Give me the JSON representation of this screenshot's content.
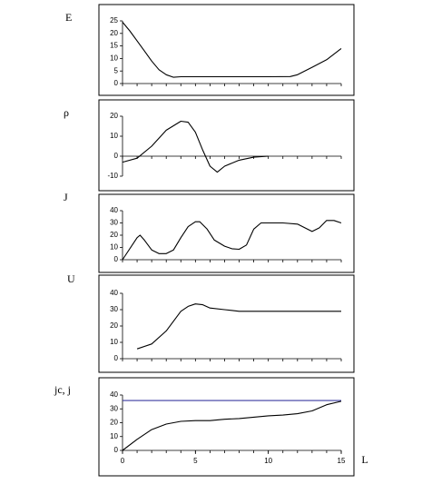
{
  "chart_data": [
    {
      "type": "line",
      "title": "E",
      "color": "#000000",
      "xlim": [
        0,
        15
      ],
      "ylim": [
        0,
        25
      ],
      "yticks": [
        0,
        5,
        10,
        15,
        20,
        25
      ],
      "x": [
        0,
        0.5,
        1,
        1.5,
        2,
        2.5,
        3,
        3.5,
        4,
        6,
        8,
        10,
        11.5,
        12,
        13,
        14,
        15
      ],
      "values": [
        24.5,
        21,
        17,
        13,
        9,
        5.5,
        3.5,
        2.5,
        2.7,
        2.7,
        2.7,
        2.7,
        2.8,
        3.5,
        6.5,
        9.5,
        14
      ]
    },
    {
      "type": "line",
      "title": "ρ",
      "color": "#000000",
      "xlim": [
        0,
        15
      ],
      "ylim": [
        -10,
        20
      ],
      "yticks": [
        -10,
        0,
        10,
        20
      ],
      "x": [
        0,
        1,
        2,
        3,
        4,
        4.5,
        5,
        5.5,
        6,
        6.5,
        7,
        8,
        9,
        10
      ],
      "values": [
        -3,
        -1,
        5,
        13,
        17.5,
        17,
        12,
        3,
        -5,
        -8,
        -5,
        -2,
        -0.5,
        0
      ]
    },
    {
      "type": "line",
      "title": "J",
      "color": "#000000",
      "xlim": [
        0,
        15
      ],
      "ylim": [
        0,
        40
      ],
      "yticks": [
        0,
        10,
        20,
        30,
        40
      ],
      "x": [
        0,
        1,
        1.2,
        1.5,
        2,
        2.5,
        3,
        3.5,
        4,
        4.5,
        5,
        5.3,
        5.8,
        6.3,
        7,
        7.5,
        8,
        8.5,
        9,
        9.5,
        11,
        12,
        13,
        13.5,
        14,
        14.5,
        15
      ],
      "values": [
        0,
        18,
        20,
        16,
        8,
        5,
        5,
        8,
        18,
        27,
        31,
        31,
        25,
        16,
        11,
        9,
        8.5,
        12,
        25,
        30,
        30,
        29,
        23,
        26,
        32,
        32,
        30
      ]
    },
    {
      "type": "line",
      "title": "U",
      "color": "#000000",
      "xlim": [
        0,
        15
      ],
      "ylim": [
        0,
        40
      ],
      "yticks": [
        0,
        10,
        20,
        30,
        40
      ],
      "x": [
        1,
        2,
        3,
        4,
        4.5,
        5,
        5.5,
        6,
        7,
        8,
        9,
        15
      ],
      "values": [
        6,
        9,
        17,
        29,
        32,
        33.5,
        33,
        31,
        30,
        29,
        29,
        29
      ]
    },
    {
      "type": "line",
      "title": "jc, j",
      "xlabel": "L",
      "xlim": [
        0,
        15
      ],
      "xticks": [
        0,
        5,
        10,
        15
      ],
      "ylim": [
        0,
        40
      ],
      "yticks": [
        0,
        10,
        20,
        30,
        40
      ],
      "x": [
        0,
        1,
        2,
        3,
        4,
        5,
        6,
        7,
        8,
        9,
        10,
        11,
        12,
        13,
        14,
        15
      ],
      "series": [
        {
          "color": "#3a3aa0",
          "values": [
            36,
            36,
            36,
            36,
            36,
            36,
            36,
            36,
            36,
            36,
            36,
            36,
            36,
            36,
            36,
            36
          ]
        },
        {
          "color": "#000000",
          "values": [
            0,
            8,
            15,
            19,
            21,
            21.5,
            21.5,
            22.5,
            23,
            24,
            25,
            25.5,
            26.5,
            28.5,
            33,
            35.5
          ]
        }
      ]
    }
  ]
}
